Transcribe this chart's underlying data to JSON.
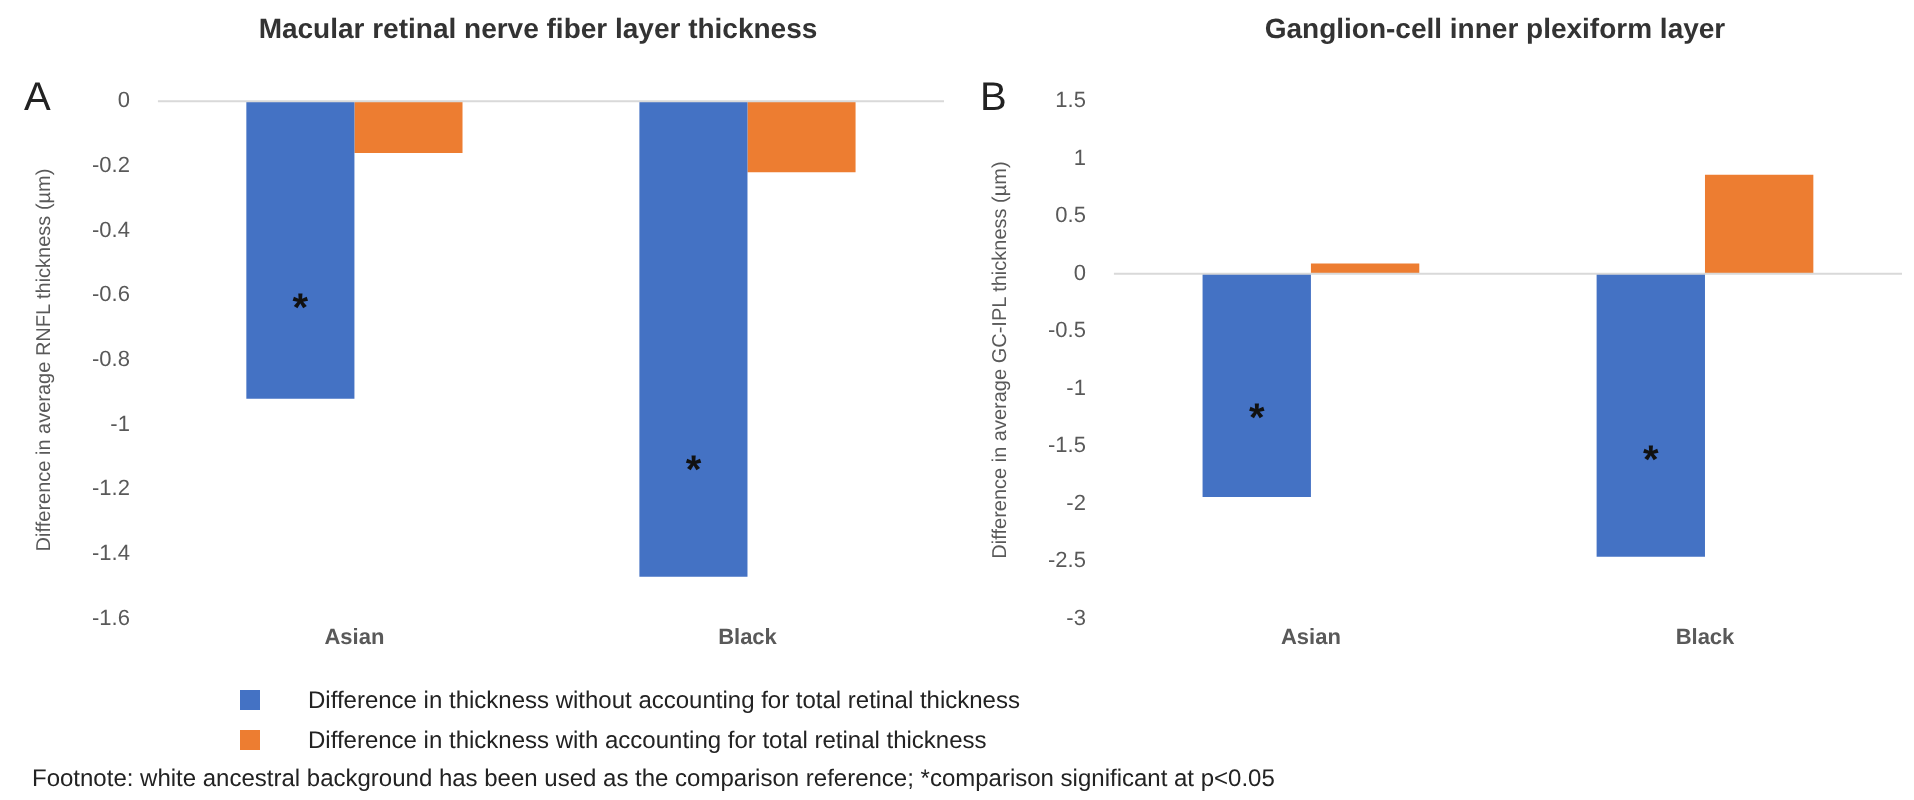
{
  "chart_data": [
    {
      "type": "bar",
      "title": "Macular retinal nerve fiber layer thickness",
      "ylabel": "Difference in average RNFL thickness (µm)",
      "categories": [
        "Asian",
        "Black"
      ],
      "series": [
        {
          "name": "Difference in thickness without accounting for total retinal thickness",
          "color": "#4472c4",
          "values": [
            -0.92,
            -1.47
          ]
        },
        {
          "name": "Difference in thickness with accounting for total retinal thickness",
          "color": "#ed7d31",
          "values": [
            -0.16,
            -0.22
          ]
        }
      ],
      "ref_lines": [
        {
          "axis": "y",
          "value": 0,
          "color": "#d9d9d9"
        }
      ],
      "ylim": [
        -1.6,
        0
      ],
      "yticks": [
        -1.6,
        -1.4,
        -1.2,
        -1,
        -0.8,
        -0.6,
        -0.4,
        -0.2,
        0
      ],
      "grid": false,
      "legend": "bottom",
      "annotations": [
        "A",
        {
          "text": "*",
          "x": "Asian",
          "y": -0.62
        },
        {
          "text": "*",
          "x": "Black",
          "y": -1.12
        },
        "Footnote: white ancestral background has been used as the comparison reference; *comparison significant at p<0.05"
      ]
    },
    {
      "type": "bar",
      "title": "Ganglion-cell inner plexiform layer",
      "ylabel": "Difference in average GC-IPL thickness (µm)",
      "categories": [
        "Asian",
        "Black"
      ],
      "series": [
        {
          "color": "#4472c4",
          "values": [
            -1.94,
            -2.46
          ]
        },
        {
          "color": "#ed7d31",
          "values": [
            0.09,
            0.86
          ]
        }
      ],
      "ref_lines": [
        {
          "axis": "y",
          "value": 0,
          "color": "#d9d9d9"
        }
      ],
      "ylim": [
        -3,
        1.5
      ],
      "yticks": [
        -3,
        -2.5,
        -2,
        -1.5,
        -1,
        -0.5,
        0,
        0.5,
        1,
        1.5
      ],
      "grid": false,
      "legend": false,
      "annotations": [
        "B",
        {
          "text": "*",
          "x": "Asian",
          "y": -1.2
        },
        {
          "text": "*",
          "x": "Black",
          "y": -1.57
        }
      ]
    }
  ]
}
